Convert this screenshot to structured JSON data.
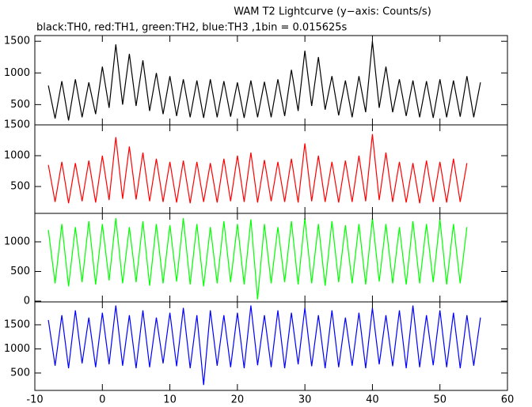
{
  "chart_data": {
    "type": "line",
    "title": "WAM T2 Lightcurve (y−axis: Counts/s)",
    "subtitle": "black:TH0, red:TH1, green:TH2, blue:TH3 ,1bin = 0.015625s",
    "x": [
      -8,
      -7,
      -6,
      -5,
      -4,
      -3,
      -2,
      -1,
      0,
      1,
      2,
      3,
      4,
      5,
      6,
      7,
      8,
      9,
      10,
      11,
      12,
      13,
      14,
      15,
      16,
      17,
      18,
      19,
      20,
      21,
      22,
      23,
      24,
      25,
      26,
      27,
      28,
      29,
      30,
      31,
      32,
      33,
      34,
      35,
      36,
      37,
      38,
      39,
      40,
      41,
      42,
      43,
      44,
      45,
      46,
      47,
      48,
      49,
      50,
      51,
      52,
      53,
      54,
      55,
      56
    ],
    "xlim": [
      -10,
      60
    ],
    "xticks": [
      -10,
      0,
      10,
      20,
      30,
      40,
      50,
      60
    ],
    "panels": [
      {
        "ylim": [
          180,
          1590
        ],
        "yticks": [
          500,
          1000,
          1500
        ],
        "series": [
          {
            "name": "TH0",
            "color": "#000000",
            "values": [
              800,
              280,
              870,
              250,
              900,
              300,
              850,
              350,
              1100,
              450,
              1450,
              500,
              1300,
              480,
              1200,
              400,
              1000,
              350,
              950,
              320,
              900,
              300,
              880,
              290,
              900,
              300,
              870,
              310,
              850,
              290,
              880,
              300,
              860,
              300,
              900,
              320,
              1050,
              400,
              1350,
              480,
              1250,
              420,
              950,
              330,
              880,
              300,
              950,
              380,
              1500,
              450,
              1100,
              380,
              900,
              320,
              880,
              300,
              870,
              290,
              900,
              300,
              880,
              310,
              950,
              300,
              850
            ]
          }
        ]
      },
      {
        "ylim": [
          64,
          1500
        ],
        "yticks": [
          500,
          1000,
          1500
        ],
        "series": [
          {
            "name": "TH1",
            "color": "#ff0000",
            "values": [
              850,
              250,
              900,
              230,
              880,
              260,
              920,
              240,
              1000,
              280,
              1300,
              300,
              1150,
              290,
              1050,
              260,
              950,
              250,
              900,
              240,
              920,
              230,
              900,
              250,
              880,
              240,
              950,
              260,
              1000,
              250,
              1050,
              240,
              930,
              260,
              900,
              250,
              950,
              240,
              1200,
              260,
              1000,
              250,
              900,
              240,
              920,
              250,
              1000,
              260,
              1350,
              280,
              1050,
              250,
              900,
              240,
              880,
              230,
              920,
              250,
              900,
              240,
              950,
              250,
              880
            ]
          }
        ]
      },
      {
        "ylim": [
          -13,
          1480
        ],
        "yticks": [
          0,
          500,
          1000
        ],
        "series": [
          {
            "name": "TH2",
            "color": "#00ff00",
            "values": [
              1200,
              300,
              1300,
              250,
              1250,
              320,
              1350,
              280,
              1300,
              350,
              1400,
              300,
              1250,
              320,
              1350,
              260,
              1300,
              300,
              1280,
              330,
              1400,
              280,
              1300,
              250,
              1250,
              300,
              1350,
              320,
              1300,
              280,
              1380,
              30,
              1300,
              300,
              1250,
              320,
              1350,
              280,
              1400,
              300,
              1300,
              260,
              1350,
              320,
              1280,
              300,
              1300,
              280,
              1400,
              330,
              1300,
              300,
              1250,
              280,
              1350,
              300,
              1300,
              320,
              1380,
              280,
              1300,
              300,
              1250
            ]
          }
        ]
      },
      {
        "ylim": [
          139,
          1975
        ],
        "yticks": [
          500,
          1000,
          1500
        ],
        "series": [
          {
            "name": "TH3",
            "color": "#0000ff",
            "values": [
              1600,
              650,
              1700,
              600,
              1800,
              700,
              1650,
              620,
              1750,
              680,
              1900,
              650,
              1700,
              600,
              1800,
              620,
              1650,
              700,
              1750,
              640,
              1850,
              600,
              1700,
              250,
              1800,
              650,
              1700,
              620,
              1750,
              600,
              1900,
              660,
              1700,
              620,
              1800,
              600,
              1750,
              680,
              1850,
              640,
              1700,
              600,
              1800,
              620,
              1650,
              650,
              1750,
              600,
              1850,
              680,
              1700,
              640,
              1800,
              600,
              1900,
              620,
              1700,
              660,
              1800,
              620,
              1750,
              600,
              1700,
              650,
              1650
            ]
          }
        ]
      }
    ]
  }
}
